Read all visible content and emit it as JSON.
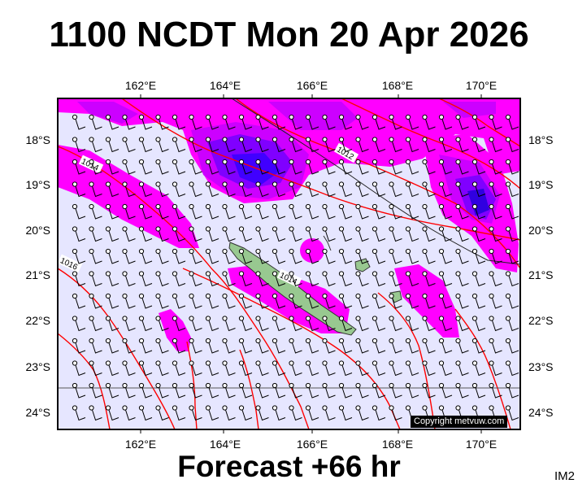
{
  "header": {
    "title": "1100 NCDT Mon 20 Apr 2026"
  },
  "footer": {
    "subtitle": "Forecast +66 hr",
    "corner_label": "IM2"
  },
  "map": {
    "background_color": "#e6e6ff",
    "land_color": "#98c890",
    "isobar_color": "#ff0000",
    "rain_colors": [
      "#ff00ff",
      "#cc00ff",
      "#8000ff",
      "#4000ff"
    ],
    "lon_labels_top": [
      "162°E",
      "164°E",
      "166°E",
      "168°E",
      "170°E"
    ],
    "lon_labels_bottom": [
      "162°E",
      "164°E",
      "166°E",
      "168°E",
      "170°E"
    ],
    "lat_labels_left": [
      "18°S",
      "19°S",
      "20°S",
      "21°S",
      "22°S",
      "23°S",
      "24°S"
    ],
    "lat_labels_right": [
      "18°S",
      "19°S",
      "20°S",
      "21°S",
      "22°S",
      "23°S",
      "24°S"
    ],
    "isobar_labels": [
      "1014",
      "1016",
      "1012",
      "1014"
    ],
    "copyright": "Copyright metvuw.com"
  }
}
